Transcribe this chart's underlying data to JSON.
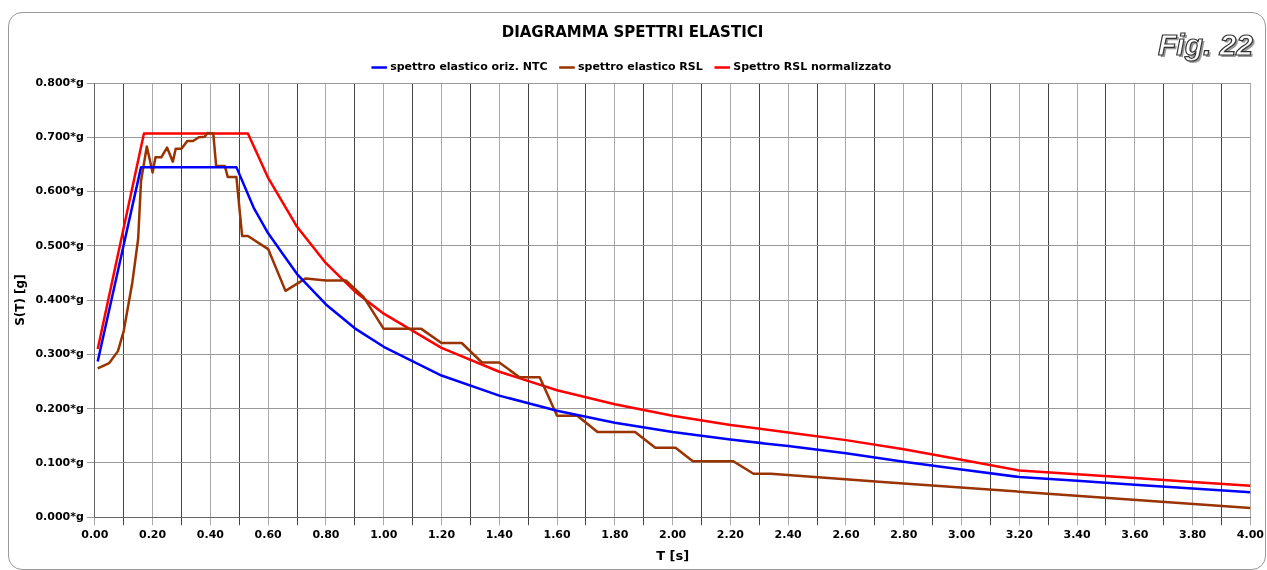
{
  "chart_data": {
    "type": "line",
    "title": "DIAGRAMMA SPETTRI ELASTICI",
    "xlabel": "T [s]",
    "ylabel": "S(T) [g]",
    "annotations": [
      "Fig. 22"
    ],
    "xlim": [
      0,
      4
    ],
    "ylim": [
      0,
      0.8
    ],
    "xticks": [
      {
        "value": 0,
        "label": "0.00"
      },
      {
        "value": 0.1,
        "label": null
      },
      {
        "value": 0.2,
        "label": "0.20"
      },
      {
        "value": 0.3,
        "label": null
      },
      {
        "value": 0.4,
        "label": "0.40"
      },
      {
        "value": 0.5,
        "label": null
      },
      {
        "value": 0.6,
        "label": "0.60"
      },
      {
        "value": 0.7,
        "label": null
      },
      {
        "value": 0.8,
        "label": "0.80"
      },
      {
        "value": 0.9,
        "label": null
      },
      {
        "value": 1,
        "label": "1.00"
      },
      {
        "value": 1.1,
        "label": null
      },
      {
        "value": 1.2,
        "label": "1.20"
      },
      {
        "value": 1.3,
        "label": null
      },
      {
        "value": 1.4,
        "label": "1.40"
      },
      {
        "value": 1.5,
        "label": null
      },
      {
        "value": 1.6,
        "label": "1.60"
      },
      {
        "value": 1.7,
        "label": null
      },
      {
        "value": 1.8,
        "label": "1.80"
      },
      {
        "value": 1.9,
        "label": null
      },
      {
        "value": 2,
        "label": "2.00"
      },
      {
        "value": 2.1,
        "label": null
      },
      {
        "value": 2.2,
        "label": "2.20"
      },
      {
        "value": 2.3,
        "label": null
      },
      {
        "value": 2.4,
        "label": "2.40"
      },
      {
        "value": 2.5,
        "label": null
      },
      {
        "value": 2.6,
        "label": "2.60"
      },
      {
        "value": 2.7,
        "label": null
      },
      {
        "value": 2.8,
        "label": "2.80"
      },
      {
        "value": 2.9,
        "label": null
      },
      {
        "value": 3,
        "label": "3.00"
      },
      {
        "value": 3.1,
        "label": null
      },
      {
        "value": 3.2,
        "label": "3.20"
      },
      {
        "value": 3.3,
        "label": null
      },
      {
        "value": 3.4,
        "label": "3.40"
      },
      {
        "value": 3.5,
        "label": null
      },
      {
        "value": 3.6,
        "label": "3.60"
      },
      {
        "value": 3.7,
        "label": null
      },
      {
        "value": 3.8,
        "label": "3.80"
      },
      {
        "value": 3.9,
        "label": null
      },
      {
        "value": 4,
        "label": "4.00"
      }
    ],
    "yticks": [
      {
        "value": 0,
        "label": "0.000*g"
      },
      {
        "value": 0.1,
        "label": "0.100*g"
      },
      {
        "value": 0.2,
        "label": "0.200*g"
      },
      {
        "value": 0.3,
        "label": "0.300*g"
      },
      {
        "value": 0.4,
        "label": "0.400*g"
      },
      {
        "value": 0.5,
        "label": "0.500*g"
      },
      {
        "value": 0.6,
        "label": "0.600*g"
      },
      {
        "value": 0.7,
        "label": "0.700*g"
      },
      {
        "value": 0.8,
        "label": "0.800*g"
      }
    ],
    "grid": true,
    "legend": "top",
    "marker": "none",
    "line_style": "solid",
    "series": [
      {
        "name": "spettro elastico oriz. NTC",
        "color": "#0000ff",
        "x": [
          0.01,
          0.16,
          0.49,
          0.55,
          0.6,
          0.7,
          0.8,
          0.9,
          1.0,
          1.2,
          1.4,
          1.6,
          1.8,
          2.0,
          2.2,
          2.4,
          2.6,
          2.8,
          3.0,
          3.2,
          3.4,
          3.6,
          3.8,
          4.0
        ],
        "values": [
          0.287,
          0.645,
          0.645,
          0.57,
          0.523,
          0.448,
          0.392,
          0.348,
          0.314,
          0.261,
          0.224,
          0.196,
          0.174,
          0.157,
          0.143,
          0.131,
          0.118,
          0.102,
          0.088,
          0.074,
          0.067,
          0.06,
          0.053,
          0.046
        ]
      },
      {
        "name": "spettro elastico RSL",
        "color": "#993300",
        "x": [
          0.01,
          0.05,
          0.08,
          0.1,
          0.13,
          0.15,
          0.16,
          0.18,
          0.2,
          0.21,
          0.23,
          0.25,
          0.27,
          0.28,
          0.3,
          0.32,
          0.34,
          0.36,
          0.38,
          0.39,
          0.41,
          0.42,
          0.45,
          0.46,
          0.49,
          0.51,
          0.53,
          0.6,
          0.66,
          0.73,
          0.8,
          0.87,
          0.93,
          1.0,
          1.08,
          1.13,
          1.2,
          1.27,
          1.34,
          1.4,
          1.47,
          1.54,
          1.6,
          1.67,
          1.74,
          1.87,
          1.94,
          2.01,
          2.07,
          2.21,
          2.28,
          2.34,
          2.75,
          3.2,
          4.0
        ],
        "values": [
          0.274,
          0.284,
          0.306,
          0.343,
          0.433,
          0.513,
          0.62,
          0.683,
          0.635,
          0.663,
          0.663,
          0.681,
          0.655,
          0.679,
          0.679,
          0.693,
          0.693,
          0.7,
          0.701,
          0.708,
          0.707,
          0.647,
          0.647,
          0.627,
          0.627,
          0.518,
          0.518,
          0.494,
          0.417,
          0.44,
          0.436,
          0.436,
          0.406,
          0.347,
          0.347,
          0.347,
          0.321,
          0.321,
          0.285,
          0.285,
          0.258,
          0.258,
          0.187,
          0.187,
          0.157,
          0.157,
          0.128,
          0.128,
          0.103,
          0.103,
          0.08,
          0.08,
          0.064,
          0.047,
          0.017
        ]
      },
      {
        "name": "Spettro RSL normalizzato",
        "color": "#ff0000",
        "x": [
          0.01,
          0.17,
          0.53,
          0.6,
          0.7,
          0.8,
          0.9,
          1.0,
          1.2,
          1.4,
          1.6,
          1.8,
          2.0,
          2.2,
          2.4,
          2.6,
          2.8,
          3.0,
          3.2,
          3.4,
          3.6,
          3.8,
          4.0
        ],
        "values": [
          0.31,
          0.707,
          0.707,
          0.625,
          0.535,
          0.468,
          0.416,
          0.375,
          0.312,
          0.268,
          0.234,
          0.208,
          0.187,
          0.17,
          0.156,
          0.142,
          0.125,
          0.106,
          0.086,
          0.079,
          0.072,
          0.065,
          0.058
        ]
      }
    ]
  }
}
